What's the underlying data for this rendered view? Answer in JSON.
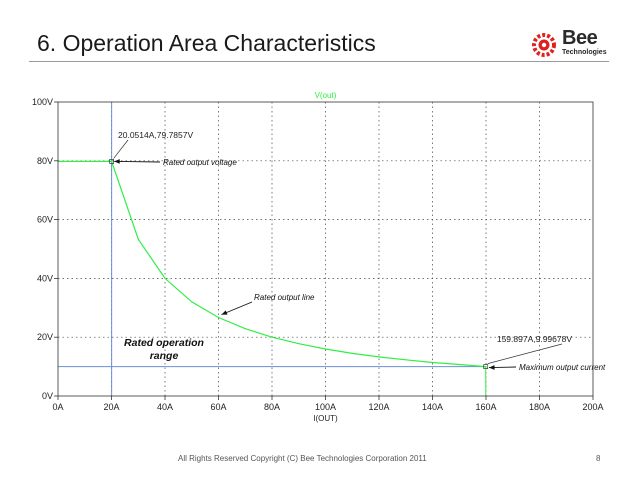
{
  "slide": {
    "title": "6. Operation Area Characteristics",
    "footer": "All Rights Reserved Copyright (C) Bee Technologies Corporation 2011",
    "page_number": "8",
    "logo": {
      "name": "Bee",
      "sub": "Technologies",
      "color": "#e0201c"
    }
  },
  "colors": {
    "curve": "#33ee44",
    "cursor": "#6a8fd8",
    "grid": "#444444",
    "axis_text": "#222222"
  },
  "chart_data": {
    "type": "line",
    "title": "V(out)",
    "xlabel": "I(OUT)",
    "ylabel": "",
    "xlim": [
      0,
      200
    ],
    "ylim": [
      0,
      100
    ],
    "x_ticks": [
      0,
      20,
      40,
      60,
      80,
      100,
      120,
      140,
      160,
      180,
      200
    ],
    "x_tick_labels": [
      "0A",
      "20A",
      "40A",
      "60A",
      "80A",
      "100A",
      "120A",
      "140A",
      "160A",
      "180A",
      "200A"
    ],
    "y_ticks": [
      0,
      20,
      40,
      60,
      80,
      100
    ],
    "y_tick_labels": [
      "0V",
      "20V",
      "40V",
      "60V",
      "80V",
      "100V"
    ],
    "grid": true,
    "series": [
      {
        "name": "V(out)",
        "x": [
          0,
          20.0514,
          30,
          40,
          50,
          60,
          70,
          80,
          90,
          100,
          110,
          120,
          130,
          140,
          150,
          159.897
        ],
        "y": [
          79.7857,
          79.7857,
          53.3,
          40.0,
          32.0,
          26.7,
          22.9,
          20.0,
          17.8,
          16.0,
          14.5,
          13.3,
          12.3,
          11.4,
          10.7,
          9.99678
        ]
      }
    ],
    "cursors": [
      {
        "x": 20.0514,
        "y": 79.7857,
        "label": "20.0514A,79.7857V"
      },
      {
        "x": 159.897,
        "y": 9.99678,
        "label": "159.897A,9.99678V"
      }
    ],
    "annotations": [
      {
        "text": "Rated output voltage",
        "italic": true,
        "bold": false,
        "arrow_to_x": 21,
        "arrow_to_y": 79.8
      },
      {
        "text": "Rated output line",
        "italic": true,
        "bold": false,
        "arrow_to_x": 60,
        "arrow_to_y": 27
      },
      {
        "text": "Maximum output current",
        "italic": true,
        "bold": false,
        "arrow_to_x": 160,
        "arrow_to_y": 10
      },
      {
        "text": "Rated operation",
        "italic": true,
        "bold": true
      },
      {
        "text": "range",
        "italic": true,
        "bold": true
      }
    ]
  }
}
